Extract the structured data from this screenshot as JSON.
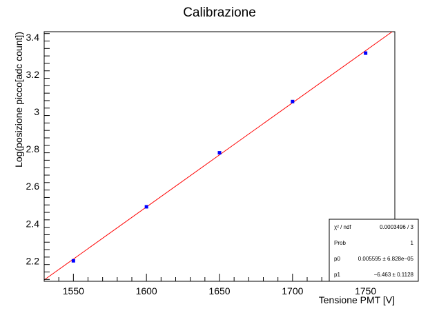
{
  "chart_data": {
    "type": "scatter",
    "title": "Calibrazione",
    "xlabel": "Tensione PMT [V]",
    "ylabel": "Log(posizione picco[adc count])",
    "xlim": [
      1530,
      1770
    ],
    "ylim": [
      2.09,
      3.43
    ],
    "x_ticks": [
      1550,
      1600,
      1650,
      1700,
      1750
    ],
    "y_ticks": [
      2.2,
      2.4,
      2.6,
      2.8,
      3.0,
      3.2,
      3.4
    ],
    "x_tick_labels": [
      "1550",
      "1600",
      "1650",
      "1700",
      "1750"
    ],
    "y_tick_labels": [
      "2.2",
      "2.4",
      "2.6",
      "2.8",
      "3",
      "3.2",
      "3.4"
    ],
    "grid": false,
    "series": [
      {
        "x": [
          1550,
          1600,
          1650,
          1700,
          1750
        ],
        "y": [
          2.2,
          2.49,
          2.78,
          3.055,
          3.315
        ],
        "color": "#0000ff",
        "marker": "square"
      }
    ],
    "fit": {
      "function": "p0*x + p1",
      "p0": 0.005595,
      "p1": -6.463,
      "color": "#ff0000"
    },
    "stats": {
      "rows": [
        {
          "label": "χ² / ndf",
          "value": "0.0003496 / 3"
        },
        {
          "label": "Prob",
          "value": "1"
        },
        {
          "label": "p0",
          "value": "0.005595 ± 6.828e−05"
        },
        {
          "label": "p1",
          "value": "−6.463 ± 0.1128"
        }
      ]
    }
  }
}
